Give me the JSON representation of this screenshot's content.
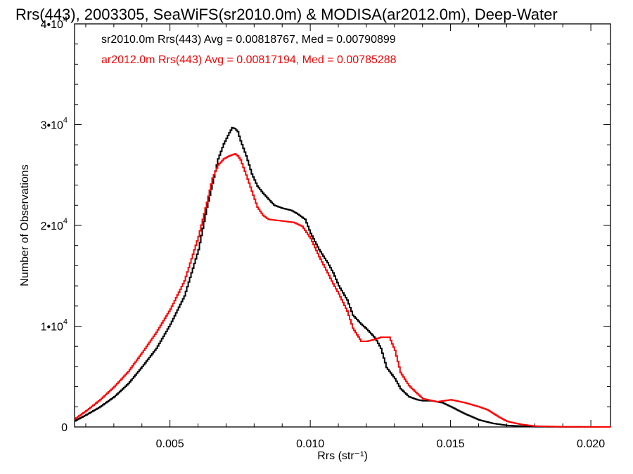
{
  "chart_data": {
    "type": "line",
    "title": "Rrs(443), 2003305, SeaWiFS(sr2010.0m) & MODISA(ar2012.0m), Deep-Water",
    "xlabel": "Rrs (str⁻¹)",
    "ylabel": "Number of Observations",
    "xlim": [
      0.0016,
      0.0207
    ],
    "ylim": [
      0,
      40000
    ],
    "xticks": [
      {
        "value": 0.005,
        "label": "0.005"
      },
      {
        "value": 0.01,
        "label": "0.010"
      },
      {
        "value": 0.015,
        "label": "0.015"
      },
      {
        "value": 0.02,
        "label": "0.020"
      }
    ],
    "yticks": [
      {
        "value": 0,
        "mant": "0",
        "exp": ""
      },
      {
        "value": 10000,
        "mant": "1•10",
        "exp": "4"
      },
      {
        "value": 20000,
        "mant": "2•10",
        "exp": "4"
      },
      {
        "value": 30000,
        "mant": "3•10",
        "exp": "4"
      },
      {
        "value": 40000,
        "mant": "4•10",
        "exp": "4"
      }
    ],
    "grid": false,
    "legend_position": "top-left",
    "series": [
      {
        "name": "sr2010.0m Rrs(443) Avg = 0.00818767, Med = 0.00790899",
        "color": "#000000",
        "points": [
          [
            0.0016,
            600
          ],
          [
            0.002,
            1200
          ],
          [
            0.0025,
            2000
          ],
          [
            0.003,
            3000
          ],
          [
            0.0035,
            4300
          ],
          [
            0.004,
            6000
          ],
          [
            0.0045,
            7800
          ],
          [
            0.005,
            10200
          ],
          [
            0.0055,
            13000
          ],
          [
            0.006,
            17600
          ],
          [
            0.0063,
            21800
          ],
          [
            0.0065,
            24200
          ],
          [
            0.0067,
            26600
          ],
          [
            0.0069,
            28100
          ],
          [
            0.0071,
            29200
          ],
          [
            0.0072,
            29700
          ],
          [
            0.0073,
            29600
          ],
          [
            0.0074,
            29300
          ],
          [
            0.0075,
            28400
          ],
          [
            0.0077,
            26900
          ],
          [
            0.0079,
            25100
          ],
          [
            0.0081,
            23900
          ],
          [
            0.0083,
            23200
          ],
          [
            0.0085,
            22600
          ],
          [
            0.0087,
            22000
          ],
          [
            0.009,
            21700
          ],
          [
            0.0093,
            21500
          ],
          [
            0.0095,
            21200
          ],
          [
            0.0098,
            20600
          ],
          [
            0.01,
            19200
          ],
          [
            0.0103,
            17600
          ],
          [
            0.0106,
            16300
          ],
          [
            0.0108,
            15300
          ],
          [
            0.011,
            14000
          ],
          [
            0.0113,
            12600
          ],
          [
            0.0115,
            11100
          ],
          [
            0.0118,
            10200
          ],
          [
            0.012,
            9700
          ],
          [
            0.0123,
            8800
          ],
          [
            0.0125,
            7800
          ],
          [
            0.0127,
            5900
          ],
          [
            0.013,
            4800
          ],
          [
            0.0132,
            3800
          ],
          [
            0.0135,
            3000
          ],
          [
            0.0138,
            2700
          ],
          [
            0.014,
            2600
          ],
          [
            0.0143,
            2600
          ],
          [
            0.0147,
            2400
          ],
          [
            0.015,
            2000
          ],
          [
            0.0155,
            1300
          ],
          [
            0.016,
            700
          ],
          [
            0.0165,
            350
          ],
          [
            0.017,
            150
          ],
          [
            0.0175,
            80
          ],
          [
            0.018,
            30
          ],
          [
            0.019,
            10
          ],
          [
            0.0207,
            0
          ]
        ]
      },
      {
        "name": "ar2012.0m Rrs(443) Avg = 0.00817194, Med = 0.00785288",
        "color": "#ff0000",
        "points": [
          [
            0.0016,
            800
          ],
          [
            0.002,
            1600
          ],
          [
            0.0025,
            2700
          ],
          [
            0.003,
            4000
          ],
          [
            0.0035,
            5500
          ],
          [
            0.004,
            7400
          ],
          [
            0.0045,
            9400
          ],
          [
            0.005,
            11700
          ],
          [
            0.0055,
            14500
          ],
          [
            0.006,
            18900
          ],
          [
            0.0063,
            22300
          ],
          [
            0.0065,
            24700
          ],
          [
            0.0067,
            26000
          ],
          [
            0.0069,
            26600
          ],
          [
            0.0071,
            26900
          ],
          [
            0.0073,
            27100
          ],
          [
            0.0074,
            26900
          ],
          [
            0.0075,
            26500
          ],
          [
            0.0077,
            25000
          ],
          [
            0.0079,
            23400
          ],
          [
            0.0081,
            21800
          ],
          [
            0.0083,
            21000
          ],
          [
            0.0085,
            20600
          ],
          [
            0.0088,
            20500
          ],
          [
            0.0091,
            20400
          ],
          [
            0.0094,
            20300
          ],
          [
            0.0097,
            19900
          ],
          [
            0.01,
            18700
          ],
          [
            0.0103,
            16900
          ],
          [
            0.0106,
            15300
          ],
          [
            0.0108,
            14200
          ],
          [
            0.011,
            13200
          ],
          [
            0.0113,
            11500
          ],
          [
            0.0115,
            9800
          ],
          [
            0.0118,
            8500
          ],
          [
            0.012,
            8500
          ],
          [
            0.0123,
            8700
          ],
          [
            0.0125,
            8900
          ],
          [
            0.0128,
            8900
          ],
          [
            0.013,
            7600
          ],
          [
            0.0132,
            5400
          ],
          [
            0.0135,
            4100
          ],
          [
            0.0138,
            3300
          ],
          [
            0.014,
            2800
          ],
          [
            0.0145,
            2500
          ],
          [
            0.015,
            2700
          ],
          [
            0.0155,
            2400
          ],
          [
            0.016,
            2000
          ],
          [
            0.0163,
            1700
          ],
          [
            0.0167,
            1000
          ],
          [
            0.017,
            550
          ],
          [
            0.0175,
            250
          ],
          [
            0.018,
            80
          ],
          [
            0.019,
            20
          ],
          [
            0.0207,
            0
          ]
        ]
      }
    ]
  }
}
